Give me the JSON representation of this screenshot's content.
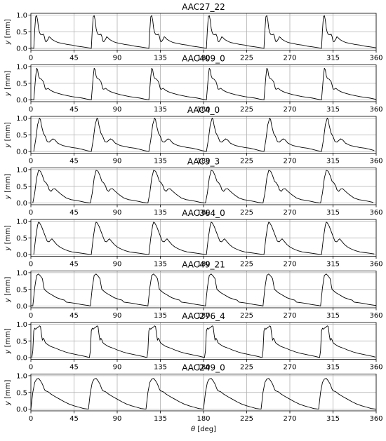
{
  "chart_data": {
    "type": "line",
    "xlabel_var": "θ",
    "xlabel_unit": "[deg]",
    "ylabel_var": "y",
    "ylabel_unit": "[mm]",
    "xlim": [
      0,
      360
    ],
    "ylim": [
      -0.05,
      1.05
    ],
    "xticks": [
      "0",
      "45",
      "90",
      "135",
      "180",
      "225",
      "270",
      "315",
      "360"
    ],
    "yticks": [
      "0.0",
      "0.5",
      "1.0"
    ],
    "grid": true,
    "line_color": "#000000",
    "period_deg": 60,
    "panels": [
      {
        "title": "AAC27_22",
        "start": 3,
        "profile": [
          [
            0,
            0
          ],
          [
            1,
            0.55
          ],
          [
            2,
            0.95
          ],
          [
            3,
            0.98
          ],
          [
            4,
            0.85
          ],
          [
            5,
            0.6
          ],
          [
            6,
            0.48
          ],
          [
            7,
            0.42
          ],
          [
            9,
            0.41
          ],
          [
            10,
            0.43
          ],
          [
            11,
            0.36
          ],
          [
            12,
            0.22
          ],
          [
            13,
            0.2
          ],
          [
            15,
            0.28
          ],
          [
            16,
            0.35
          ],
          [
            17,
            0.33
          ],
          [
            19,
            0.27
          ],
          [
            22,
            0.22
          ],
          [
            25,
            0.18
          ],
          [
            30,
            0.15
          ],
          [
            35,
            0.12
          ],
          [
            40,
            0.1
          ],
          [
            45,
            0.07
          ],
          [
            50,
            0.05
          ],
          [
            55,
            0.03
          ],
          [
            57,
            0.02
          ],
          [
            60,
            0
          ]
        ]
      },
      {
        "title": "AAC409_0",
        "start": 3,
        "profile": [
          [
            0,
            0
          ],
          [
            2,
            0.7
          ],
          [
            3,
            0.95
          ],
          [
            4,
            0.9
          ],
          [
            5,
            0.72
          ],
          [
            6,
            0.65
          ],
          [
            8,
            0.62
          ],
          [
            10,
            0.55
          ],
          [
            11,
            0.45
          ],
          [
            12,
            0.33
          ],
          [
            13,
            0.32
          ],
          [
            15,
            0.35
          ],
          [
            17,
            0.3
          ],
          [
            20,
            0.25
          ],
          [
            25,
            0.2
          ],
          [
            30,
            0.16
          ],
          [
            35,
            0.13
          ],
          [
            40,
            0.1
          ],
          [
            45,
            0.08
          ],
          [
            50,
            0.06
          ],
          [
            55,
            0.03
          ],
          [
            57,
            0.02
          ],
          [
            60,
            0
          ]
        ]
      },
      {
        "title": "AAC4_0",
        "start": 3,
        "profile": [
          [
            0,
            0
          ],
          [
            2,
            0.35
          ],
          [
            4,
            0.8
          ],
          [
            6,
            1.0
          ],
          [
            7,
            0.95
          ],
          [
            8,
            0.78
          ],
          [
            10,
            0.55
          ],
          [
            12,
            0.45
          ],
          [
            14,
            0.3
          ],
          [
            16,
            0.28
          ],
          [
            18,
            0.33
          ],
          [
            20,
            0.38
          ],
          [
            22,
            0.35
          ],
          [
            25,
            0.25
          ],
          [
            30,
            0.18
          ],
          [
            35,
            0.15
          ],
          [
            40,
            0.12
          ],
          [
            45,
            0.1
          ],
          [
            50,
            0.07
          ],
          [
            55,
            0.03
          ],
          [
            60,
            0
          ]
        ]
      },
      {
        "title": "AAC3_3",
        "start": 2,
        "profile": [
          [
            0,
            0
          ],
          [
            2,
            0.3
          ],
          [
            4,
            0.75
          ],
          [
            6,
            0.98
          ],
          [
            8,
            0.95
          ],
          [
            10,
            0.82
          ],
          [
            12,
            0.65
          ],
          [
            14,
            0.6
          ],
          [
            16,
            0.5
          ],
          [
            17,
            0.4
          ],
          [
            19,
            0.35
          ],
          [
            21,
            0.42
          ],
          [
            23,
            0.43
          ],
          [
            26,
            0.35
          ],
          [
            30,
            0.25
          ],
          [
            35,
            0.15
          ],
          [
            40,
            0.1
          ],
          [
            45,
            0.08
          ],
          [
            50,
            0.05
          ],
          [
            55,
            0.02
          ],
          [
            60,
            0
          ]
        ]
      },
      {
        "title": "AAC364_0",
        "start": 3,
        "profile": [
          [
            0,
            0
          ],
          [
            2,
            0.5
          ],
          [
            4,
            0.88
          ],
          [
            5,
            0.97
          ],
          [
            6,
            0.95
          ],
          [
            8,
            0.85
          ],
          [
            10,
            0.7
          ],
          [
            12,
            0.55
          ],
          [
            14,
            0.4
          ],
          [
            16,
            0.38
          ],
          [
            18,
            0.45
          ],
          [
            19,
            0.47
          ],
          [
            21,
            0.4
          ],
          [
            24,
            0.3
          ],
          [
            27,
            0.23
          ],
          [
            30,
            0.18
          ],
          [
            35,
            0.12
          ],
          [
            40,
            0.08
          ],
          [
            45,
            0.06
          ],
          [
            50,
            0.04
          ],
          [
            55,
            0.02
          ],
          [
            60,
            0
          ]
        ]
      },
      {
        "title": "AAC49_21",
        "start": 2,
        "profile": [
          [
            0,
            0
          ],
          [
            2,
            0.55
          ],
          [
            4,
            0.92
          ],
          [
            6,
            0.96
          ],
          [
            8,
            0.9
          ],
          [
            10,
            0.82
          ],
          [
            11,
            0.65
          ],
          [
            12,
            0.5
          ],
          [
            14,
            0.45
          ],
          [
            16,
            0.4
          ],
          [
            19,
            0.35
          ],
          [
            22,
            0.3
          ],
          [
            25,
            0.25
          ],
          [
            28,
            0.22
          ],
          [
            30,
            0.2
          ],
          [
            33,
            0.18
          ],
          [
            35,
            0.12
          ],
          [
            40,
            0.1
          ],
          [
            45,
            0.08
          ],
          [
            50,
            0.05
          ],
          [
            55,
            0.03
          ],
          [
            58,
            0.02
          ],
          [
            60,
            0
          ]
        ]
      },
      {
        "title": "AAC276_4",
        "start": 1,
        "profile": [
          [
            0,
            0
          ],
          [
            1,
            0.2
          ],
          [
            2,
            0.8
          ],
          [
            3,
            0.88
          ],
          [
            4,
            0.85
          ],
          [
            5,
            0.88
          ],
          [
            7,
            0.92
          ],
          [
            8,
            0.95
          ],
          [
            9,
            0.93
          ],
          [
            10,
            0.7
          ],
          [
            11,
            0.52
          ],
          [
            12,
            0.58
          ],
          [
            13,
            0.53
          ],
          [
            14,
            0.45
          ],
          [
            16,
            0.4
          ],
          [
            20,
            0.33
          ],
          [
            25,
            0.28
          ],
          [
            30,
            0.22
          ],
          [
            35,
            0.17
          ],
          [
            40,
            0.13
          ],
          [
            45,
            0.1
          ],
          [
            50,
            0.07
          ],
          [
            55,
            0.04
          ],
          [
            58,
            0.02
          ],
          [
            60,
            0
          ]
        ]
      },
      {
        "title": "AAC249_0",
        "start": 0,
        "profile": [
          [
            0,
            0
          ],
          [
            2,
            0.5
          ],
          [
            4,
            0.8
          ],
          [
            6,
            0.9
          ],
          [
            8,
            0.92
          ],
          [
            10,
            0.85
          ],
          [
            12,
            0.75
          ],
          [
            14,
            0.6
          ],
          [
            15,
            0.55
          ],
          [
            18,
            0.52
          ],
          [
            21,
            0.45
          ],
          [
            25,
            0.38
          ],
          [
            30,
            0.3
          ],
          [
            35,
            0.22
          ],
          [
            40,
            0.15
          ],
          [
            45,
            0.1
          ],
          [
            50,
            0.06
          ],
          [
            55,
            0.02
          ],
          [
            60,
            0
          ]
        ]
      }
    ]
  }
}
